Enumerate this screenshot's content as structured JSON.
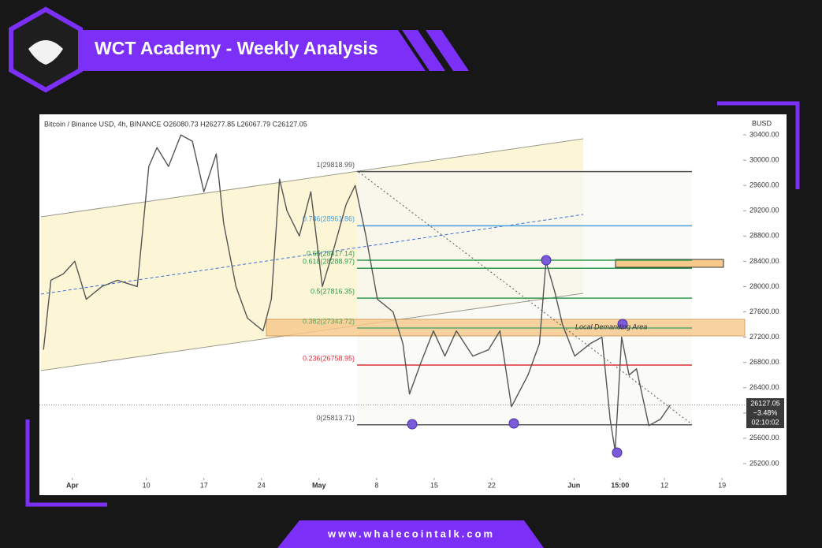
{
  "header": {
    "title": "WCT Academy - Weekly Analysis"
  },
  "footer": {
    "url": "www.whalecointalk.com"
  },
  "chart_data": {
    "type": "line",
    "symbol_info": "Bitcoin / Binance USD, 4h, BINANCE  O26080.73 H26277.85 L26067.79 C26127.05",
    "currency": "BUSD",
    "last_price": {
      "value": 26127.05,
      "label": "26127.05"
    },
    "change": "−3.48%",
    "countdown": "02:10:02",
    "annotation": "Local Demanding Area",
    "series": [
      {
        "name": "BTCBUSD",
        "color": "#555555",
        "x": [
          -3.5,
          -2.6,
          -1.1,
          0.3,
          1.7,
          3.6,
          5.5,
          7.9,
          9.3,
          10.3,
          11.7,
          13.2,
          14.6,
          16.0,
          17.5,
          18.4,
          19.9,
          21.3,
          23.2,
          24.2,
          25.2,
          26.1,
          27.6,
          29.0,
          30.4,
          31.8,
          33.3,
          34.4,
          35.7,
          37.1,
          39.0,
          40.2,
          41.0,
          42.4,
          43.9,
          45.3,
          46.7,
          48.7,
          50.6,
          52.0,
          53.4,
          55.4,
          56.8,
          57.6,
          58.7,
          59.6,
          61.1,
          63.0,
          64.4,
          65.4,
          66.0,
          66.8,
          67.7,
          68.6,
          70.1,
          71.5,
          72.7
        ],
        "values": [
          27000,
          28100,
          28200,
          28400,
          27800,
          28000,
          28100,
          28000,
          29900,
          30200,
          29900,
          30400,
          30300,
          29500,
          30100,
          29000,
          28000,
          27500,
          27300,
          27800,
          29700,
          29200,
          28800,
          29500,
          28000,
          28600,
          29300,
          29600,
          28800,
          27800,
          27600,
          27100,
          26300,
          26800,
          27300,
          26900,
          27300,
          26900,
          27000,
          27300,
          26100,
          26600,
          27100,
          28400,
          27900,
          27400,
          26900,
          27100,
          27200,
          25900,
          25400,
          27200,
          26600,
          26700,
          25800,
          25900,
          26127.05
        ]
      }
    ],
    "fib_levels": [
      {
        "value": 29818.99,
        "label": "1(29818.99)",
        "color": "#555555"
      },
      {
        "value": 28961.86,
        "label": "0.786(28961.86)",
        "color": "#4a9fe0"
      },
      {
        "value": 28417.14,
        "label": "0.65(28417.14)",
        "color": "#2e9b4f"
      },
      {
        "value": 28288.97,
        "label": "0.618(28288.97)",
        "color": "#2e9b4f"
      },
      {
        "value": 27816.35,
        "label": "0.5(27816.35)",
        "color": "#2e9b4f"
      },
      {
        "value": 27343.72,
        "label": "0.382(27343.72)",
        "color": "#5aa86a"
      },
      {
        "value": 26758.95,
        "label": "0.236(26758.95)",
        "color": "#e0303c"
      },
      {
        "value": 25813.71,
        "label": "0(25813.71)",
        "color": "#555555"
      }
    ],
    "xlim": [
      -4,
      81
    ],
    "ylim": [
      24700,
      30700
    ],
    "xticks": [
      {
        "value": 0,
        "label": "Apr"
      },
      {
        "value": 9,
        "label": "10"
      },
      {
        "value": 16,
        "label": "17"
      },
      {
        "value": 23,
        "label": "24"
      },
      {
        "value": 30,
        "label": "May"
      },
      {
        "value": 37,
        "label": "8"
      },
      {
        "value": 44,
        "label": "15"
      },
      {
        "value": 51,
        "label": "22"
      },
      {
        "value": 61,
        "label": "Jun"
      },
      {
        "value": 66.6,
        "label": "15:00"
      },
      {
        "value": 72,
        "label": "12"
      },
      {
        "value": 79,
        "label": "19"
      }
    ],
    "yticks": [
      {
        "value": 25200,
        "label": "25200.00"
      },
      {
        "value": 25600,
        "label": "25600.00"
      },
      {
        "value": 26000,
        "label": "26000.00"
      },
      {
        "value": 26400,
        "label": "26400.00"
      },
      {
        "value": 26800,
        "label": "26800.00"
      },
      {
        "value": 27200,
        "label": "27200.00"
      },
      {
        "value": 27600,
        "label": "27600.00"
      },
      {
        "value": 28000,
        "label": "28000.00"
      },
      {
        "value": 28400,
        "label": "28400.00"
      },
      {
        "value": 28800,
        "label": "28800.00"
      },
      {
        "value": 29200,
        "label": "29200.00"
      },
      {
        "value": 29600,
        "label": "29600.00"
      },
      {
        "value": 30000,
        "label": "30000.00"
      },
      {
        "value": 30400,
        "label": "30400.00"
      }
    ]
  }
}
